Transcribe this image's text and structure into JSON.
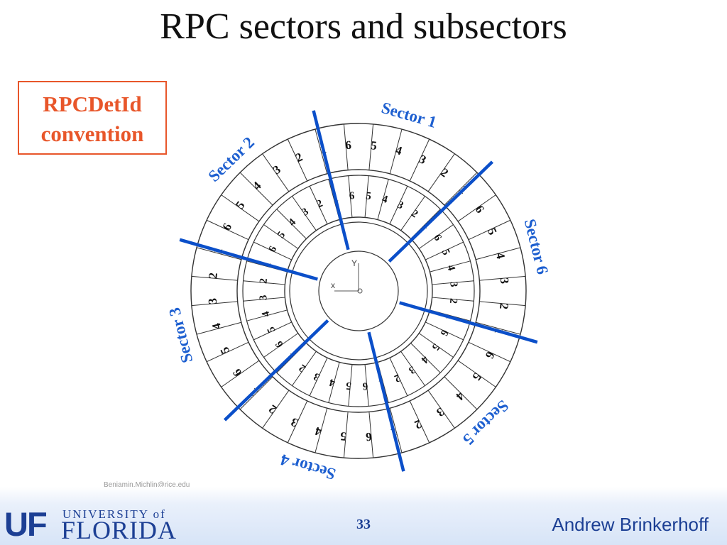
{
  "slide": {
    "title": "RPC sectors and subsectors",
    "convention_box": {
      "line1": "RPCDetId",
      "line2": "convention"
    },
    "credit": "Benjamin.Michlin@rice.edu",
    "page_number": "33",
    "author": "Andrew Brinkerhoff"
  },
  "logo": {
    "mark": "UF",
    "line1": "UNIVERSITY of",
    "line2": "FLORIDA"
  },
  "diagram": {
    "sector_labels": [
      "Sector 1",
      "Sector 2",
      "Sector 3",
      "Sector 4",
      "Sector 5",
      "Sector 6"
    ],
    "subsector_numbers": [
      "1",
      "2",
      "3",
      "4",
      "5",
      "6"
    ],
    "axis_labels": {
      "x": "x",
      "y": "Y"
    },
    "colors": {
      "sector_line": "#0b4fc9",
      "sector_label": "#1d5fd0",
      "accent": "#e8562a",
      "brand": "#1c3f94"
    }
  }
}
